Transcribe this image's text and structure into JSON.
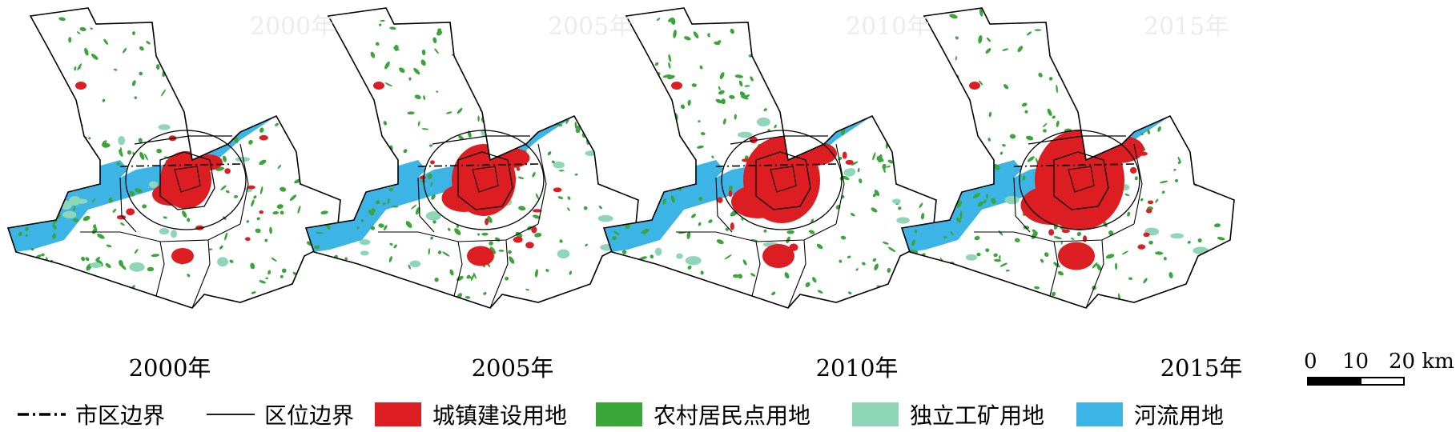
{
  "maps": [
    {
      "year_label": "2000年",
      "ghost_label": "2000年",
      "urban_scale": 1.0
    },
    {
      "year_label": "2005年",
      "ghost_label": "2005年",
      "urban_scale": 1.25
    },
    {
      "year_label": "2010年",
      "ghost_label": "2010年",
      "urban_scale": 1.5
    },
    {
      "year_label": "2015年",
      "ghost_label": "2015年",
      "urban_scale": 1.75
    }
  ],
  "scale_bar": {
    "ticks": [
      "0",
      "10",
      "20 km"
    ]
  },
  "legend": {
    "city_boundary": "市区边界",
    "district_boundary": "区位边界",
    "urban_construction": "城镇建设用地",
    "rural_settlement": "农村居民点用地",
    "industrial_mining": "独立工矿用地",
    "river": "河流用地"
  },
  "colors": {
    "urban": "#dc1e23",
    "rural": "#3aa63a",
    "industrial": "#8fd6b8",
    "river": "#3cb4e6",
    "boundary": "#000000"
  }
}
